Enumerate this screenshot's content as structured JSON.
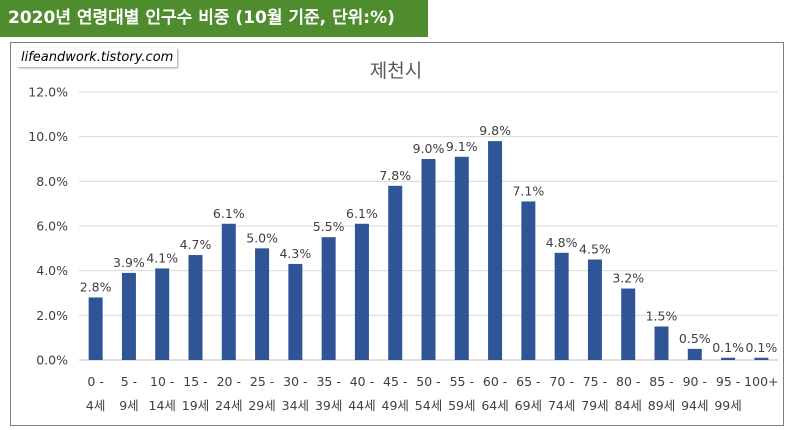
{
  "header": {
    "title": "2020년 연령대별 인구수 비중 (10월 기준, 단위:%)",
    "watermark": "lifeandwork.tistory.com"
  },
  "colors": {
    "header_bg": "#4e8c2e",
    "bar": "#2f5597",
    "grid": "#d9d9d9"
  },
  "chart_data": {
    "type": "bar",
    "title": "제천시",
    "xlabel": "",
    "ylabel": "",
    "ylim": [
      0,
      12
    ],
    "yticks": [
      "0.0%",
      "2.0%",
      "4.0%",
      "6.0%",
      "8.0%",
      "10.0%",
      "12.0%"
    ],
    "grid": true,
    "legend": "none",
    "categories": [
      [
        "0 -",
        "4세"
      ],
      [
        "5 -",
        "9세"
      ],
      [
        "10 -",
        "14세"
      ],
      [
        "15 -",
        "19세"
      ],
      [
        "20 -",
        "24세"
      ],
      [
        "25 -",
        "29세"
      ],
      [
        "30 -",
        "34세"
      ],
      [
        "35 -",
        "39세"
      ],
      [
        "40 -",
        "44세"
      ],
      [
        "45 -",
        "49세"
      ],
      [
        "50 -",
        "54세"
      ],
      [
        "55 -",
        "59세"
      ],
      [
        "60 -",
        "64세"
      ],
      [
        "65 -",
        "69세"
      ],
      [
        "70 -",
        "74세"
      ],
      [
        "75 -",
        "79세"
      ],
      [
        "80 -",
        "84세"
      ],
      [
        "85 -",
        "89세"
      ],
      [
        "90 -",
        "94세"
      ],
      [
        "95 -",
        "99세"
      ],
      [
        "100+",
        ""
      ]
    ],
    "values": [
      2.8,
      3.9,
      4.1,
      4.7,
      6.1,
      5.0,
      4.3,
      5.5,
      6.1,
      7.8,
      9.0,
      9.1,
      9.8,
      7.1,
      4.8,
      4.5,
      3.2,
      1.5,
      0.5,
      0.1,
      0.1
    ],
    "data_labels": [
      "2.8%",
      "3.9%",
      "4.1%",
      "4.7%",
      "6.1%",
      "5.0%",
      "4.3%",
      "5.5%",
      "6.1%",
      "7.8%",
      "9.0%",
      "9.1%",
      "9.8%",
      "7.1%",
      "4.8%",
      "4.5%",
      "3.2%",
      "1.5%",
      "0.5%",
      "0.1%",
      "0.1%"
    ]
  }
}
